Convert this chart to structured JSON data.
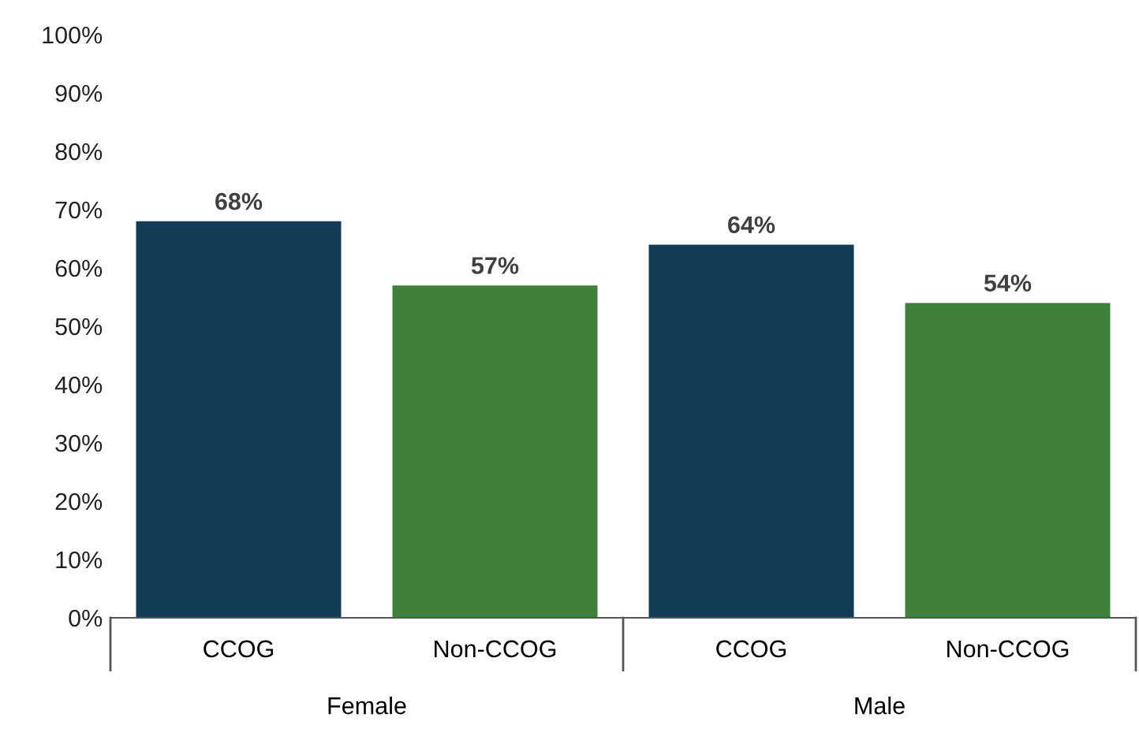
{
  "chart_data": {
    "type": "bar",
    "categories": [
      "CCOG",
      "Non-CCOG",
      "CCOG",
      "Non-CCOG"
    ],
    "values": [
      68,
      57,
      64,
      54
    ],
    "colors": [
      "#123b55",
      "#3f803a",
      "#123b55",
      "#3f803a"
    ],
    "ylim": [
      0,
      100
    ],
    "yticks": [
      {
        "value": 0,
        "label": "0%"
      },
      {
        "value": 10,
        "label": "10%"
      },
      {
        "value": 20,
        "label": "20%"
      },
      {
        "value": 30,
        "label": "30%"
      },
      {
        "value": 40,
        "label": "40%"
      },
      {
        "value": 50,
        "label": "50%"
      },
      {
        "value": 60,
        "label": "60%"
      },
      {
        "value": 70,
        "label": "70%"
      },
      {
        "value": 80,
        "label": "80%"
      },
      {
        "value": 90,
        "label": "90%"
      },
      {
        "value": 100,
        "label": "100%"
      }
    ],
    "value_labels": [
      "68%",
      "57%",
      "64%",
      "54%"
    ],
    "annotations": [
      "Female",
      "Male"
    ],
    "grid": false,
    "legend": false
  }
}
